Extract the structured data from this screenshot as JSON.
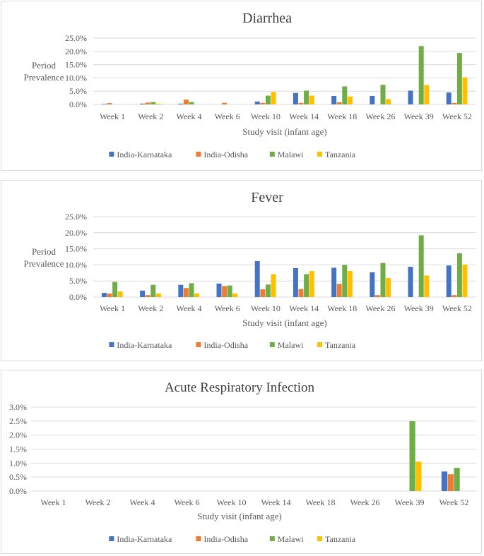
{
  "colors": {
    "India-Karnataka": "#4472c4",
    "India-Odisha": "#ed7d31",
    "Malawi": "#70ad47",
    "Tanzania": "#ffc000",
    "grid": "#d9d9d9",
    "text": "#404040"
  },
  "chart_data": [
    {
      "type": "bar",
      "title": "Diarrhea",
      "ylabel": "Period Prevalence",
      "ylabel_lines": [
        "Period",
        "Prevalence"
      ],
      "xlabel": "Study visit (infant age)",
      "categories": [
        "Week 1",
        "Week 2",
        "Week 4",
        "Week 6",
        "Week 10",
        "Week 14",
        "Week 18",
        "Week 26",
        "Week 39",
        "Week 52"
      ],
      "ylim": [
        0,
        25
      ],
      "yticks": [
        "0.0%",
        "5.0%",
        "10.0%",
        "15.0%",
        "20.0%",
        "25.0%"
      ],
      "ytick_values": [
        0,
        5,
        10,
        15,
        20,
        25
      ],
      "legend_position": "bottom",
      "series": [
        {
          "name": "India-Karnataka",
          "values": [
            0.2,
            0.3,
            0.3,
            0.0,
            1.1,
            4.3,
            3.2,
            3.2,
            5.2,
            4.5
          ]
        },
        {
          "name": "India-Odisha",
          "values": [
            0.5,
            0.7,
            1.8,
            0.6,
            0.6,
            0.6,
            0.8,
            0.0,
            0.0,
            0.6
          ]
        },
        {
          "name": "Malawi",
          "values": [
            0.0,
            0.9,
            0.9,
            0.0,
            3.3,
            5.2,
            6.8,
            7.4,
            22.0,
            19.4
          ]
        },
        {
          "name": "Tanzania",
          "values": [
            0.0,
            0.3,
            0.0,
            0.0,
            4.7,
            3.3,
            3.0,
            2.0,
            7.3,
            10.2
          ]
        }
      ]
    },
    {
      "type": "bar",
      "title": "Fever",
      "ylabel": "Period Prevalence",
      "ylabel_lines": [
        "Period",
        "Prevalence"
      ],
      "xlabel": "Study visit (infant age)",
      "categories": [
        "Week 1",
        "Week 2",
        "Week 4",
        "Week 6",
        "Week 10",
        "Week 14",
        "Week 18",
        "Week 26",
        "Week 39",
        "Week 52"
      ],
      "ylim": [
        0,
        25
      ],
      "yticks": [
        "0.0%",
        "5.0%",
        "10.0%",
        "15.0%",
        "20.0%",
        "25.0%"
      ],
      "ytick_values": [
        0,
        5,
        10,
        15,
        20,
        25
      ],
      "legend_position": "bottom",
      "series": [
        {
          "name": "India-Karnataka",
          "values": [
            1.3,
            2.0,
            3.8,
            4.2,
            11.2,
            9.0,
            9.1,
            7.7,
            9.4,
            9.8
          ]
        },
        {
          "name": "India-Odisha",
          "values": [
            1.1,
            0.6,
            2.8,
            3.4,
            2.4,
            2.5,
            4.1,
            0.6,
            0.0,
            0.6
          ]
        },
        {
          "name": "Malawi",
          "values": [
            4.7,
            3.8,
            4.3,
            3.6,
            3.9,
            7.1,
            10.0,
            10.6,
            19.2,
            13.6
          ]
        },
        {
          "name": "Tanzania",
          "values": [
            1.7,
            1.1,
            1.1,
            1.1,
            7.1,
            8.1,
            8.1,
            5.9,
            6.7,
            10.1
          ]
        }
      ]
    },
    {
      "type": "bar",
      "title": "Acute Respiratory Infection",
      "ylabel": "",
      "ylabel_lines": [],
      "xlabel": "Study visit (infant age)",
      "categories": [
        "Week 1",
        "Week 2",
        "Week 4",
        "Week 6",
        "Week 10",
        "Week 14",
        "Week 18",
        "Week 26",
        "Week 39",
        "Week 52"
      ],
      "ylim": [
        0,
        3
      ],
      "yticks": [
        "0.0%",
        "0.5%",
        "1.0%",
        "1.5%",
        "2.0%",
        "2.5%",
        "3.0%"
      ],
      "ytick_values": [
        0,
        0.5,
        1,
        1.5,
        2,
        2.5,
        3
      ],
      "legend_position": "bottom",
      "series": [
        {
          "name": "India-Karnataka",
          "values": [
            0,
            0,
            0,
            0,
            0,
            0,
            0,
            0,
            0,
            0.7
          ]
        },
        {
          "name": "India-Odisha",
          "values": [
            0,
            0,
            0,
            0,
            0,
            0,
            0,
            0,
            0,
            0.6
          ]
        },
        {
          "name": "Malawi",
          "values": [
            0,
            0,
            0,
            0,
            0,
            0,
            0,
            0,
            2.5,
            0.83
          ]
        },
        {
          "name": "Tanzania",
          "values": [
            0,
            0,
            0,
            0,
            0,
            0,
            0,
            0,
            1.05,
            0
          ]
        }
      ]
    }
  ]
}
